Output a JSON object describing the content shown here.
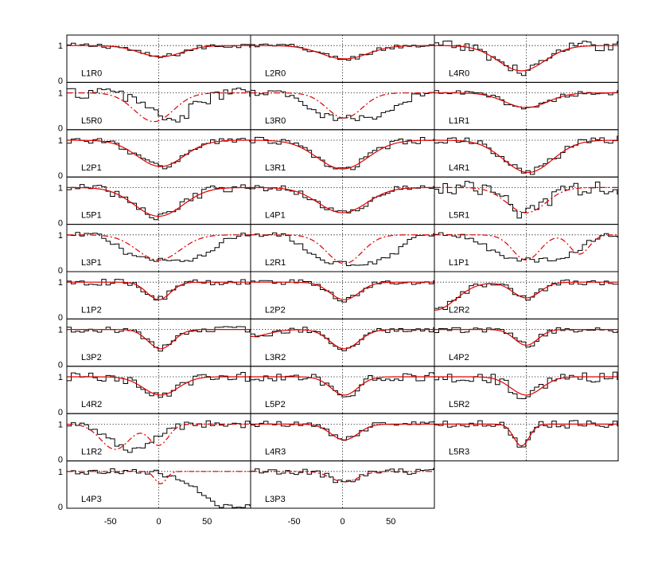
{
  "chart_data": {
    "type": "line",
    "title": "",
    "xlabel": "",
    "ylabel": "",
    "xlim": [
      -95,
      95
    ],
    "ylim": [
      -0.05,
      1.3
    ],
    "xticks": [
      -50,
      0,
      50
    ],
    "xtick_labels": [
      "-50",
      "0",
      "50"
    ],
    "yticks": [
      0,
      1
    ],
    "ytick_labels": [
      "0",
      "1"
    ],
    "grid": "dotted reference lines at x = 0 and y = 1",
    "colors": {
      "observed": "#000000",
      "model": "#e00000"
    },
    "series_styles": {
      "observed": "step histogram",
      "model_solid": "solid",
      "model_dashdot": "dash-dot"
    },
    "panels": [
      {
        "label": "L1R0",
        "row": 0,
        "col": 0,
        "depth": 0.32,
        "center": 2,
        "width": 22,
        "model_style": "solid",
        "obs_mode": "match",
        "noise": 0.07
      },
      {
        "label": "L2R0",
        "row": 0,
        "col": 1,
        "depth": 0.38,
        "center": 2,
        "width": 24,
        "model_style": "solid",
        "obs_mode": "match",
        "noise": 0.07
      },
      {
        "label": "L4R0",
        "row": 0,
        "col": 2,
        "depth": 0.72,
        "center": -5,
        "width": 24,
        "model_style": "solid",
        "obs_mode": "match",
        "noise": 0.15
      },
      {
        "label": "L5R0",
        "row": 1,
        "col": 0,
        "depth": 0.82,
        "center": -5,
        "width": 20,
        "model_style": "dashdot",
        "obs_mode": "shifted",
        "noise": 0.18
      },
      {
        "label": "L3R0",
        "row": 1,
        "col": 1,
        "depth": 0.72,
        "center": 2,
        "width": 18,
        "model_style": "dashdot",
        "obs_mode": "broad",
        "noise": 0.09
      },
      {
        "label": "L1R1",
        "row": 1,
        "col": 2,
        "depth": 0.42,
        "center": 0,
        "width": 22,
        "model_style": "solid",
        "obs_mode": "match",
        "noise": 0.07
      },
      {
        "label": "L2P1",
        "row": 2,
        "col": 0,
        "depth": 0.75,
        "center": 2,
        "width": 24,
        "model_style": "solid",
        "obs_mode": "match",
        "noise": 0.09
      },
      {
        "label": "L3R1",
        "row": 2,
        "col": 1,
        "depth": 0.82,
        "center": 0,
        "width": 26,
        "model_style": "solid",
        "obs_mode": "match",
        "noise": 0.09
      },
      {
        "label": "L4R1",
        "row": 2,
        "col": 2,
        "depth": 0.92,
        "center": 2,
        "width": 25,
        "model_style": "solid",
        "obs_mode": "match",
        "noise": 0.12
      },
      {
        "label": "L5P1",
        "row": 3,
        "col": 0,
        "depth": 0.82,
        "center": 0,
        "width": 25,
        "model_style": "solid",
        "obs_mode": "match",
        "noise": 0.12
      },
      {
        "label": "L4P1",
        "row": 3,
        "col": 1,
        "depth": 0.72,
        "center": 0,
        "width": 25,
        "model_style": "solid",
        "obs_mode": "match",
        "noise": 0.09
      },
      {
        "label": "L5R1",
        "row": 3,
        "col": 2,
        "depth": 0.72,
        "center": 0,
        "width": 20,
        "model_style": "dashdot",
        "obs_mode": "match",
        "noise": 0.2
      },
      {
        "label": "L3P1",
        "row": 4,
        "col": 0,
        "depth": 0.72,
        "center": 0,
        "width": 22,
        "model_style": "dashdot",
        "obs_mode": "broad",
        "noise": 0.07
      },
      {
        "label": "L2R1",
        "row": 4,
        "col": 1,
        "depth": 0.82,
        "center": 2,
        "width": 18,
        "model_style": "dashdot",
        "obs_mode": "broad",
        "noise": 0.07
      },
      {
        "label": "L1P1",
        "row": 4,
        "col": 2,
        "depth": 0.72,
        "center": 0,
        "width": 14,
        "model_style": "dashdot",
        "obs_mode": "broad",
        "noise": 0.07,
        "second": {
          "depth": 0.55,
          "center": 55,
          "width": 10
        }
      },
      {
        "label": "L1P2",
        "row": 5,
        "col": 0,
        "depth": 0.5,
        "center": 0,
        "width": 12,
        "model_style": "solid",
        "obs_mode": "match",
        "noise": 0.09
      },
      {
        "label": "L2P2",
        "row": 5,
        "col": 1,
        "depth": 0.5,
        "center": 2,
        "width": 15,
        "model_style": "solid",
        "obs_mode": "match",
        "noise": 0.07
      },
      {
        "label": "L2R2",
        "row": 5,
        "col": 2,
        "depth": 0.45,
        "center": 0,
        "width": 14,
        "model_style": "solid",
        "obs_mode": "match",
        "noise": 0.08,
        "wing": {
          "depth": 0.8,
          "center": -95,
          "width": 22
        }
      },
      {
        "label": "L3P2",
        "row": 6,
        "col": 0,
        "depth": 0.55,
        "center": 2,
        "width": 13,
        "model_style": "solid",
        "obs_mode": "match",
        "noise": 0.09
      },
      {
        "label": "L3R2",
        "row": 6,
        "col": 1,
        "depth": 0.55,
        "center": 2,
        "width": 15,
        "model_style": "solid",
        "obs_mode": "match",
        "noise": 0.08,
        "wing": {
          "depth": 0.2,
          "center": -95,
          "width": 18
        }
      },
      {
        "label": "L4P2",
        "row": 6,
        "col": 2,
        "depth": 0.45,
        "center": 0,
        "width": 12,
        "model_style": "solid",
        "obs_mode": "match",
        "noise": 0.09
      },
      {
        "label": "L4R2",
        "row": 7,
        "col": 0,
        "depth": 0.52,
        "center": 2,
        "width": 18,
        "model_style": "solid",
        "obs_mode": "match",
        "noise": 0.13
      },
      {
        "label": "L5P2",
        "row": 7,
        "col": 1,
        "depth": 0.52,
        "center": 2,
        "width": 14,
        "model_style": "solid",
        "obs_mode": "match",
        "noise": 0.12
      },
      {
        "label": "L5R2",
        "row": 7,
        "col": 2,
        "depth": 0.52,
        "center": 0,
        "width": 16,
        "model_style": "solid",
        "obs_mode": "match",
        "noise": 0.15
      },
      {
        "label": "L1R2",
        "row": 8,
        "col": 0,
        "depth": 0.72,
        "center": -45,
        "width": 15,
        "model_style": "dashdot",
        "obs_mode": "shifted",
        "noise": 0.1,
        "second": {
          "depth": 0.6,
          "center": 0,
          "width": 10
        }
      },
      {
        "label": "L4R3",
        "row": 8,
        "col": 1,
        "depth": 0.45,
        "center": 2,
        "width": 14,
        "model_style": "solid",
        "obs_mode": "match",
        "noise": 0.08
      },
      {
        "label": "L5R3",
        "row": 8,
        "col": 2,
        "depth": 0.62,
        "center": -5,
        "width": 8,
        "model_style": "solid",
        "obs_mode": "match",
        "noise": 0.12
      },
      {
        "label": "L4P3",
        "row": 9,
        "col": 0,
        "depth": 0.35,
        "center": 2,
        "width": 6,
        "model_style": "dashdot",
        "obs_mode": "decline",
        "noise": 0.08
      },
      {
        "label": "L3P3",
        "row": 9,
        "col": 1,
        "depth": 0.3,
        "center": 2,
        "width": 14,
        "model_style": "dashdot",
        "obs_mode": "match",
        "noise": 0.09
      }
    ]
  }
}
